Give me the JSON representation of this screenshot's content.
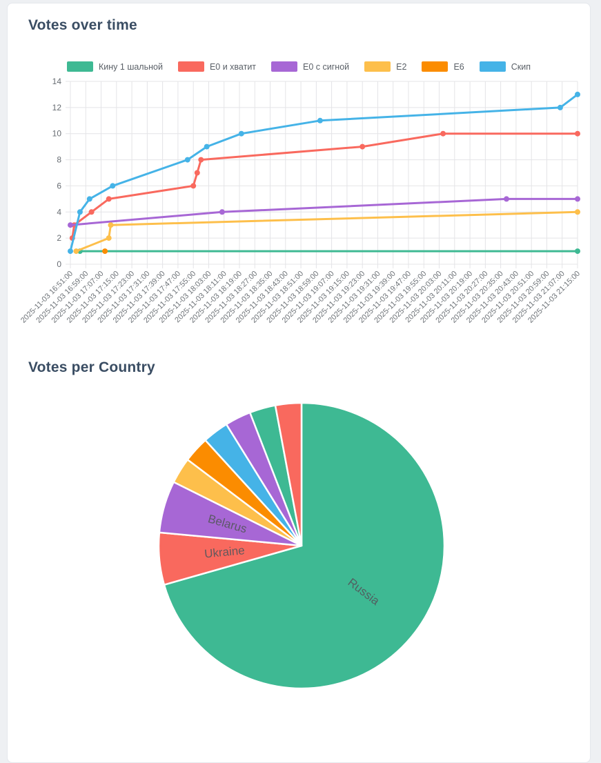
{
  "theme": {
    "page_background": "#eef0f3",
    "card_background": "#ffffff",
    "card_border": "#e4e7ec",
    "title_color": "#3a4d63",
    "grid_color": "#e4e4e7",
    "axis_label_color": "#6e7378",
    "pie_label_color": "#54575c"
  },
  "chart_data": [
    {
      "type": "line",
      "title": "Votes over time",
      "xlabel": "",
      "ylabel": "",
      "ylim": [
        0,
        14
      ],
      "y_ticks": [
        0,
        2,
        4,
        6,
        8,
        10,
        12,
        14
      ],
      "grid": true,
      "legend_position": "top",
      "x_minutes_range": [
        0,
        264
      ],
      "x_tick_step_minutes": 8,
      "x_tick_labels": [
        "2025-11-03 16:51:00",
        "2025-11-03 16:59:00",
        "2025-11-03 17:07:00",
        "2025-11-03 17:15:00",
        "2025-11-03 17:23:00",
        "2025-11-03 17:31:00",
        "2025-11-03 17:39:00",
        "2025-11-03 17:47:00",
        "2025-11-03 17:55:00",
        "2025-11-03 18:03:00",
        "2025-11-03 18:11:00",
        "2025-11-03 18:19:00",
        "2025-11-03 18:27:00",
        "2025-11-03 18:35:00",
        "2025-11-03 18:43:00",
        "2025-11-03 18:51:00",
        "2025-11-03 18:59:00",
        "2025-11-03 19:07:00",
        "2025-11-03 19:15:00",
        "2025-11-03 19:23:00",
        "2025-11-03 19:31:00",
        "2025-11-03 19:39:00",
        "2025-11-03 19:47:00",
        "2025-11-03 19:55:00",
        "2025-11-03 20:03:00",
        "2025-11-03 20:11:00",
        "2025-11-03 20:19:00",
        "2025-11-03 20:27:00",
        "2025-11-03 20:35:00",
        "2025-11-03 20:43:00",
        "2025-11-03 20:51:00",
        "2025-11-03 20:59:00",
        "2025-11-03 21:07:00",
        "2025-11-03 21:15:00"
      ],
      "series": [
        {
          "name": "Кину 1 шальной",
          "color": "#3eb993",
          "points": [
            [
              5,
              1
            ],
            [
              264,
              1
            ]
          ]
        },
        {
          "name": "Е0 и хватит",
          "color": "#f9695e",
          "points": [
            [
              1,
              2
            ],
            [
              2,
              3
            ],
            [
              11,
              4
            ],
            [
              20,
              5
            ],
            [
              64,
              6
            ],
            [
              66,
              7
            ],
            [
              68,
              8
            ],
            [
              152,
              9
            ],
            [
              194,
              10
            ],
            [
              264,
              10
            ]
          ]
        },
        {
          "name": "Е0 с сигной",
          "color": "#a767d5",
          "points": [
            [
              0,
              3
            ],
            [
              79,
              4
            ],
            [
              227,
              5
            ],
            [
              264,
              5
            ]
          ]
        },
        {
          "name": "Е2",
          "color": "#fdbf4b",
          "points": [
            [
              3,
              1
            ],
            [
              20,
              2
            ],
            [
              21,
              3
            ],
            [
              264,
              4
            ]
          ]
        },
        {
          "name": "Е6",
          "color": "#fb8c00",
          "points": [
            [
              18,
              1
            ]
          ]
        },
        {
          "name": "Скип",
          "color": "#45b3e7",
          "points": [
            [
              0,
              1
            ],
            [
              5,
              4
            ],
            [
              10,
              5
            ],
            [
              22,
              6
            ],
            [
              61,
              8
            ],
            [
              71,
              9
            ],
            [
              89,
              10
            ],
            [
              130,
              11
            ],
            [
              255,
              12
            ],
            [
              264,
              13
            ]
          ]
        }
      ]
    },
    {
      "type": "pie",
      "title": "Votes per Country",
      "direction": "clockwise",
      "start_angle_deg": 0,
      "total": 34,
      "slices": [
        {
          "label": "Russia",
          "value": 24,
          "color": "#3eb993",
          "show_label": true
        },
        {
          "label": "Ukraine",
          "value": 2,
          "color": "#f9695e",
          "show_label": true
        },
        {
          "label": "Belarus",
          "value": 2,
          "color": "#a767d5",
          "show_label": true
        },
        {
          "label": "",
          "value": 1,
          "color": "#fdbf4b",
          "show_label": false
        },
        {
          "label": "",
          "value": 1,
          "color": "#fb8c00",
          "show_label": false
        },
        {
          "label": "",
          "value": 1,
          "color": "#45b3e7",
          "show_label": false
        },
        {
          "label": "",
          "value": 1,
          "color": "#a767d5",
          "show_label": false
        },
        {
          "label": "",
          "value": 1,
          "color": "#3eb993",
          "show_label": false
        },
        {
          "label": "",
          "value": 1,
          "color": "#f9695e",
          "show_label": false
        }
      ]
    }
  ]
}
